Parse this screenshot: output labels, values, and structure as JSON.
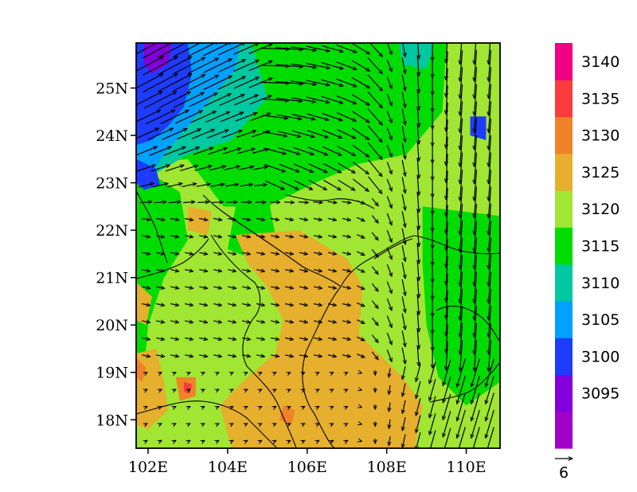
{
  "chart_data": {
    "type": "heatmap",
    "title": "",
    "xlabel": "",
    "ylabel": "",
    "xlim": [
      101.7,
      110.85
    ],
    "ylim": [
      17.4,
      25.95
    ],
    "x_tick_labels": [
      {
        "lon": 102,
        "label": "102E"
      },
      {
        "lon": 104,
        "label": "104E"
      },
      {
        "lon": 106,
        "label": "106E"
      },
      {
        "lon": 108,
        "label": "108E"
      },
      {
        "lon": 110,
        "label": "110E"
      }
    ],
    "y_tick_labels": [
      {
        "lat": 18,
        "label": "18N"
      },
      {
        "lat": 19,
        "label": "19N"
      },
      {
        "lat": 20,
        "label": "20N"
      },
      {
        "lat": 21,
        "label": "21N"
      },
      {
        "lat": 22,
        "label": "22N"
      },
      {
        "lat": 23,
        "label": "23N"
      },
      {
        "lat": 24,
        "label": "24N"
      },
      {
        "lat": 25,
        "label": "25N"
      }
    ],
    "colorbar": {
      "levels": [
        "3095",
        "3100",
        "3105",
        "3110",
        "3115",
        "3120",
        "3125",
        "3130",
        "3135",
        "3140"
      ],
      "colors": [
        "#a000c8",
        "#8200dc",
        "#1e3cff",
        "#00a0ff",
        "#00c8a0",
        "#00dc00",
        "#a0e632",
        "#e6af2d",
        "#f08228",
        "#fa3c3c",
        "#f00082"
      ]
    },
    "background_fill": "#a0e632",
    "regions": [
      {
        "level": "3120",
        "color": "#00dc00",
        "polygon": [
          [
            101.7,
            25.95
          ],
          [
            109.5,
            25.95
          ],
          [
            109.4,
            24.5
          ],
          [
            108.5,
            23.6
          ],
          [
            107.3,
            23.4
          ],
          [
            106.2,
            23.0
          ],
          [
            105.0,
            22.5
          ],
          [
            103.9,
            22.5
          ],
          [
            103.0,
            23.5
          ],
          [
            101.7,
            23.4
          ]
        ]
      },
      {
        "level": "3120",
        "color": "#00dc00",
        "polygon": [
          [
            101.7,
            23.4
          ],
          [
            102.8,
            22.8
          ],
          [
            103.0,
            21.8
          ],
          [
            102.4,
            21.0
          ],
          [
            102.0,
            20.0
          ],
          [
            101.9,
            19.0
          ],
          [
            101.7,
            18.7
          ]
        ]
      },
      {
        "level": "3120",
        "color": "#00dc00",
        "polygon": [
          [
            108.9,
            22.5
          ],
          [
            110.85,
            22.3
          ],
          [
            110.85,
            18.8
          ],
          [
            110.0,
            18.3
          ],
          [
            109.3,
            18.9
          ],
          [
            109.0,
            20.0
          ],
          [
            108.9,
            21.3
          ]
        ]
      },
      {
        "level": "3120",
        "color": "#00dc00",
        "polygon": [
          [
            104.2,
            22.5
          ],
          [
            105.0,
            22.8
          ],
          [
            105.2,
            21.9
          ],
          [
            104.6,
            21.4
          ],
          [
            104.0,
            21.6
          ]
        ]
      },
      {
        "level": "3115",
        "color": "#00c8a0",
        "polygon": [
          [
            101.7,
            25.95
          ],
          [
            104.6,
            25.95
          ],
          [
            105.0,
            24.8
          ],
          [
            104.1,
            23.9
          ],
          [
            103.0,
            23.6
          ],
          [
            102.2,
            23.2
          ],
          [
            101.7,
            23.0
          ]
        ]
      },
      {
        "level": "3115",
        "color": "#00c8a0",
        "polygon": [
          [
            108.3,
            25.95
          ],
          [
            109.2,
            25.95
          ],
          [
            109.0,
            25.4
          ],
          [
            108.4,
            25.5
          ]
        ]
      },
      {
        "level": "3110",
        "color": "#00a0ff",
        "polygon": [
          [
            101.7,
            25.95
          ],
          [
            104.3,
            25.95
          ],
          [
            104.2,
            25.4
          ],
          [
            103.6,
            24.8
          ],
          [
            102.9,
            24.1
          ],
          [
            102.4,
            23.6
          ],
          [
            102.0,
            23.1
          ],
          [
            101.7,
            23.0
          ]
        ]
      },
      {
        "level": "3105",
        "color": "#1e3cff",
        "polygon": [
          [
            101.7,
            25.95
          ],
          [
            103.0,
            25.95
          ],
          [
            103.1,
            25.3
          ],
          [
            102.9,
            24.6
          ],
          [
            102.5,
            24.2
          ],
          [
            102.1,
            23.9
          ],
          [
            101.7,
            23.8
          ]
        ]
      },
      {
        "level": "3105",
        "color": "#1e3cff",
        "polygon": [
          [
            101.7,
            23.5
          ],
          [
            102.2,
            23.3
          ],
          [
            102.3,
            22.95
          ],
          [
            101.9,
            22.85
          ],
          [
            101.7,
            23.0
          ]
        ]
      },
      {
        "level": "3100",
        "color": "#8200dc",
        "polygon": [
          [
            101.9,
            25.95
          ],
          [
            102.6,
            25.95
          ],
          [
            102.5,
            25.5
          ],
          [
            102.1,
            25.3
          ],
          [
            101.9,
            25.5
          ]
        ]
      },
      {
        "level": "3105",
        "color": "#1e3cff",
        "polygon": [
          [
            110.1,
            24.4
          ],
          [
            110.5,
            24.4
          ],
          [
            110.5,
            23.9
          ],
          [
            110.1,
            24.0
          ]
        ]
      },
      {
        "level": "3130",
        "color": "#e6af2d",
        "polygon": [
          [
            104.2,
            21.9
          ],
          [
            105.8,
            22.0
          ],
          [
            107.0,
            21.4
          ],
          [
            107.4,
            20.8
          ],
          [
            107.3,
            19.8
          ],
          [
            108.4,
            18.9
          ],
          [
            108.9,
            18.3
          ],
          [
            108.7,
            17.4
          ],
          [
            104.1,
            17.4
          ],
          [
            103.8,
            18.3
          ],
          [
            104.5,
            18.9
          ],
          [
            105.2,
            19.4
          ],
          [
            105.4,
            20.1
          ],
          [
            105.0,
            20.8
          ],
          [
            104.5,
            21.3
          ]
        ]
      },
      {
        "level": "3130",
        "color": "#e6af2d",
        "polygon": [
          [
            101.7,
            19.4
          ],
          [
            102.2,
            19.5
          ],
          [
            102.4,
            18.8
          ],
          [
            102.5,
            18.2
          ],
          [
            102.0,
            17.8
          ],
          [
            101.7,
            17.9
          ]
        ]
      },
      {
        "level": "3130",
        "color": "#e6af2d",
        "polygon": [
          [
            103.0,
            22.5
          ],
          [
            103.6,
            22.4
          ],
          [
            103.5,
            21.9
          ],
          [
            103.0,
            22.0
          ]
        ]
      },
      {
        "level": "3130",
        "color": "#e6af2d",
        "polygon": [
          [
            101.7,
            20.9
          ],
          [
            102.1,
            20.6
          ],
          [
            101.95,
            20.0
          ],
          [
            101.7,
            20.1
          ]
        ]
      },
      {
        "level": "3135",
        "color": "#f08228",
        "polygon": [
          [
            102.7,
            18.9
          ],
          [
            103.2,
            18.9
          ],
          [
            103.2,
            18.5
          ],
          [
            102.8,
            18.4
          ]
        ]
      },
      {
        "level": "3135",
        "color": "#f08228",
        "polygon": [
          [
            105.4,
            18.3
          ],
          [
            105.7,
            18.2
          ],
          [
            105.6,
            17.9
          ],
          [
            105.3,
            18.0
          ]
        ]
      },
      {
        "level": "3135",
        "color": "#f08228",
        "polygon": [
          [
            101.7,
            19.3
          ],
          [
            101.95,
            19.1
          ],
          [
            101.85,
            18.8
          ],
          [
            101.7,
            18.9
          ]
        ]
      },
      {
        "level": "3140",
        "color": "#fa3c3c",
        "polygon": [
          [
            102.9,
            18.8
          ],
          [
            103.1,
            18.75
          ],
          [
            103.05,
            18.55
          ],
          [
            102.9,
            18.6
          ]
        ]
      }
    ],
    "vector_reference": {
      "label": "6",
      "magnitude": 6
    }
  }
}
